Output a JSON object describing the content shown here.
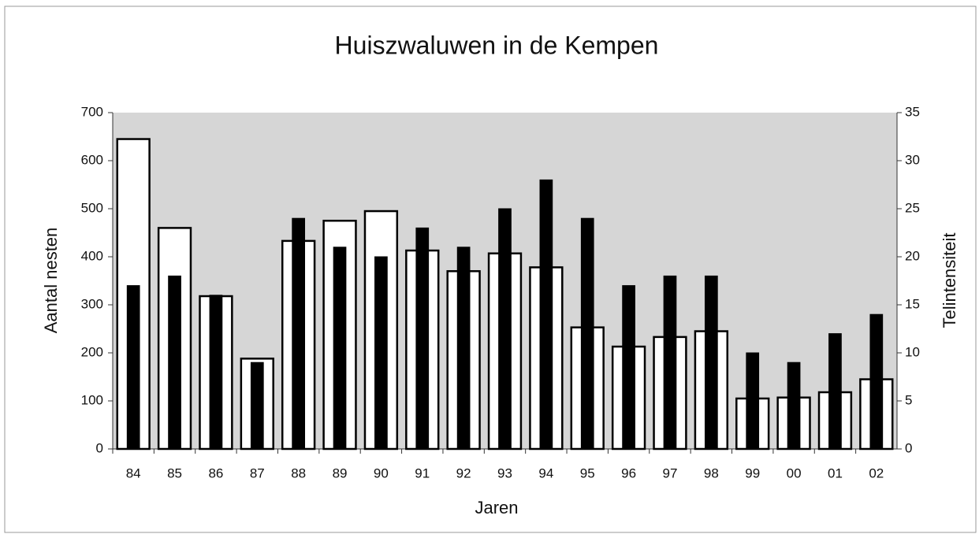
{
  "chart_data": {
    "type": "bar",
    "title": "Huiszwaluwen in de Kempen",
    "x_label": "Jaren",
    "y_label": "Aantal nesten",
    "y2_label": "Telintensiteit",
    "categories": [
      "84",
      "85",
      "86",
      "87",
      "88",
      "89",
      "90",
      "91",
      "92",
      "93",
      "94",
      "95",
      "96",
      "97",
      "98",
      "99",
      "00",
      "01",
      "02"
    ],
    "series": [
      {
        "color": "#ffffff",
        "values": [
          645,
          460,
          318,
          188,
          433,
          475,
          495,
          413,
          370,
          407,
          378,
          253,
          213,
          233,
          245,
          105,
          107,
          118,
          145
        ]
      },
      {
        "color": "#000000",
        "axis": "y2",
        "values": [
          17,
          18,
          16,
          9,
          24,
          21,
          20,
          23,
          21,
          25,
          28,
          24,
          17,
          18,
          18,
          10,
          9,
          12,
          14
        ]
      }
    ],
    "ylim": [
      0,
      700
    ],
    "yticks": [
      0,
      100,
      200,
      300,
      400,
      500,
      600,
      700
    ],
    "y2lim": [
      0,
      35
    ],
    "y2ticks": [
      0,
      5,
      10,
      15,
      20,
      25,
      30,
      35
    ]
  }
}
